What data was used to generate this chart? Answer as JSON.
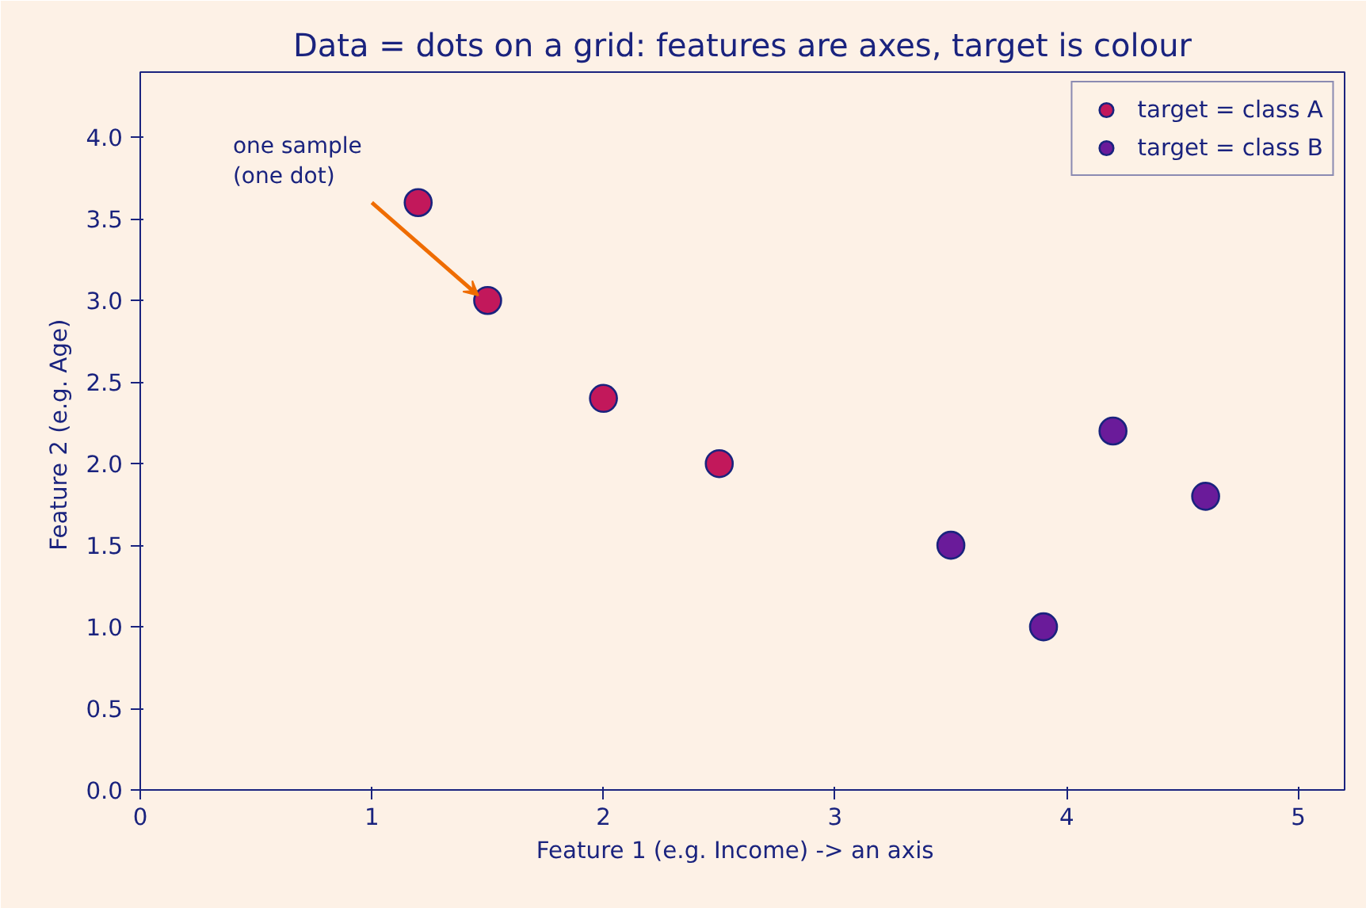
{
  "chart_data": {
    "type": "scatter",
    "title": "Data = dots on a grid: features are axes, target is colour",
    "xlabel": "Feature 1  (e.g. Income)  -> an axis",
    "ylabel": "Feature 2  (e.g. Age)",
    "series": [
      {
        "name": "target = class A",
        "color": "#c2185b",
        "x": [
          1.2,
          1.5,
          2.0,
          2.5
        ],
        "values": [
          3.6,
          3.0,
          2.4,
          2.0
        ]
      },
      {
        "name": "target = class B",
        "color": "#6a1b9a",
        "x": [
          3.5,
          3.9,
          4.2,
          4.6
        ],
        "values": [
          1.5,
          1.0,
          2.2,
          1.8
        ]
      }
    ],
    "xlim": [
      0,
      5.2
    ],
    "xticks": [
      0,
      1,
      2,
      3,
      4,
      5
    ],
    "ylim": [
      0,
      4.4
    ],
    "yticks": [
      {
        "value": 0,
        "label": "0.0"
      },
      {
        "value": 0.5,
        "label": "0.5"
      },
      {
        "value": 1,
        "label": "1.0"
      },
      {
        "value": 1.5,
        "label": "1.5"
      },
      {
        "value": 2,
        "label": "2.0"
      },
      {
        "value": 2.5,
        "label": "2.5"
      },
      {
        "value": 3,
        "label": "3.0"
      },
      {
        "value": 3.5,
        "label": "3.5"
      },
      {
        "value": 4,
        "label": "4.0"
      }
    ],
    "annotations": [
      {
        "text": "one sample\n(one dot)",
        "x": 1.5,
        "y": 3.0
      }
    ],
    "grid": false,
    "legend": "top right",
    "marker": "circle"
  }
}
